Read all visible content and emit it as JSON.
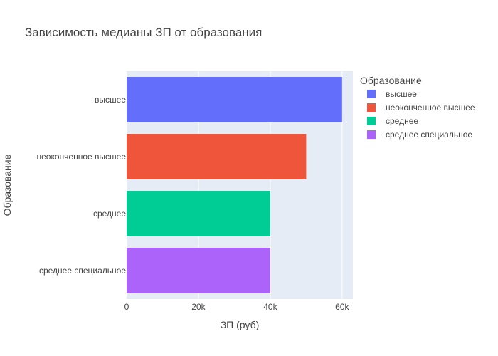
{
  "chart_data": {
    "type": "bar",
    "orientation": "horizontal",
    "title": "Зависимость медианы ЗП от образования",
    "xlabel": "ЗП (руб)",
    "ylabel": "Образование",
    "xlim": [
      0,
      63000
    ],
    "x_ticks": [
      {
        "value": 0,
        "label": "0"
      },
      {
        "value": 20000,
        "label": "20k"
      },
      {
        "value": 40000,
        "label": "40k"
      },
      {
        "value": 60000,
        "label": "60k"
      }
    ],
    "categories": [
      "высшее",
      "неоконченное высшее",
      "среднее",
      "среднее специальное"
    ],
    "values": [
      60000,
      50000,
      40000,
      40000
    ],
    "colors": [
      "#636efa",
      "#EF553B",
      "#00cc96",
      "#ab63fa"
    ],
    "grid": true,
    "legend": {
      "title": "Образование",
      "placement": "right",
      "entries": [
        "высшее",
        "неоконченное высшее",
        "среднее",
        "среднее специальное"
      ]
    },
    "background": "#E5ECF6"
  }
}
